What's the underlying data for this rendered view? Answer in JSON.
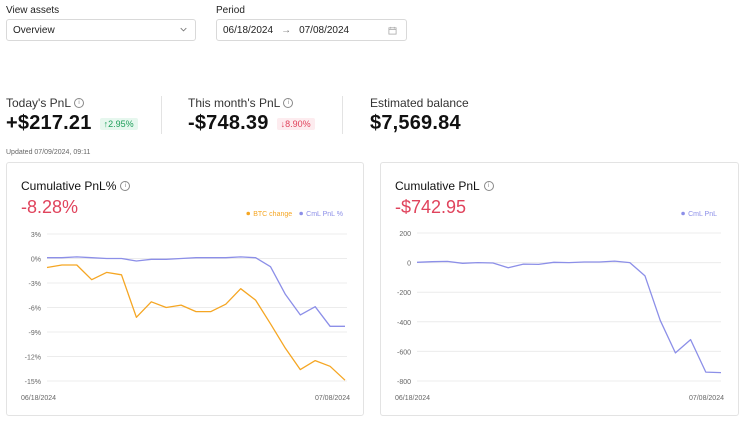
{
  "filters": {
    "view_assets_label": "View assets",
    "view_assets_value": "Overview",
    "period_label": "Period",
    "period_start": "06/18/2024",
    "period_arrow": "→",
    "period_end": "07/08/2024"
  },
  "stats": {
    "today": {
      "label": "Today's PnL",
      "value": "+$217.21",
      "badge": "↑2.95%"
    },
    "month": {
      "label": "This month's PnL",
      "value": "-$748.39",
      "badge": "↓8.90%"
    },
    "balance": {
      "label": "Estimated balance",
      "value": "$7,569.84"
    },
    "updated": "Updated 07/09/2024, 09:11"
  },
  "colors": {
    "btc": "#f5a623",
    "cml": "#8c8fe8",
    "negative": "#e0435c",
    "positive": "#1e9e5a"
  },
  "chart_data": [
    {
      "type": "line",
      "title": "Cumulative PnL%",
      "headline_value": "-8.28%",
      "x_start_label": "06/18/2024",
      "x_end_label": "07/08/2024",
      "y_ticks": [
        "3%",
        "0%",
        "-3%",
        "-6%",
        "-9%",
        "-12%",
        "-15%"
      ],
      "y_tick_values": [
        3,
        0,
        -3,
        -6,
        -9,
        -12,
        -15
      ],
      "ylim": [
        -15,
        3
      ],
      "legend_position": "top-right",
      "series": [
        {
          "name": "BTC change",
          "color": "#f5a623",
          "values": [
            -1.1,
            -0.8,
            -0.8,
            -2.6,
            -1.7,
            -2.0,
            -7.2,
            -5.3,
            -6.0,
            -5.7,
            -6.5,
            -6.5,
            -5.6,
            -3.7,
            -5.1,
            -8.0,
            -11.0,
            -13.6,
            -12.5,
            -13.2,
            -14.9
          ]
        },
        {
          "name": "CmL PnL %",
          "color": "#8c8fe8",
          "values": [
            0.1,
            0.1,
            0.2,
            0.1,
            0.0,
            0.0,
            -0.3,
            -0.1,
            -0.1,
            0.0,
            0.1,
            0.1,
            0.1,
            0.2,
            0.1,
            -1.0,
            -4.4,
            -6.9,
            -5.9,
            -8.3,
            -8.3
          ]
        }
      ]
    },
    {
      "type": "line",
      "title": "Cumulative PnL",
      "headline_value": "-$742.95",
      "x_start_label": "06/18/2024",
      "x_end_label": "07/08/2024",
      "y_ticks": [
        "200",
        "0",
        "-200",
        "-400",
        "-600",
        "-800"
      ],
      "y_tick_values": [
        200,
        0,
        -200,
        -400,
        -600,
        -800
      ],
      "ylim": [
        -800,
        200
      ],
      "legend_position": "top-right",
      "series": [
        {
          "name": "CmL PnL",
          "color": "#8c8fe8",
          "values": [
            2,
            6,
            8,
            -5,
            0,
            -3,
            -35,
            -10,
            -12,
            2,
            0,
            4,
            4,
            10,
            0,
            -90,
            -390,
            -610,
            -520,
            -740,
            -743
          ]
        }
      ]
    }
  ]
}
